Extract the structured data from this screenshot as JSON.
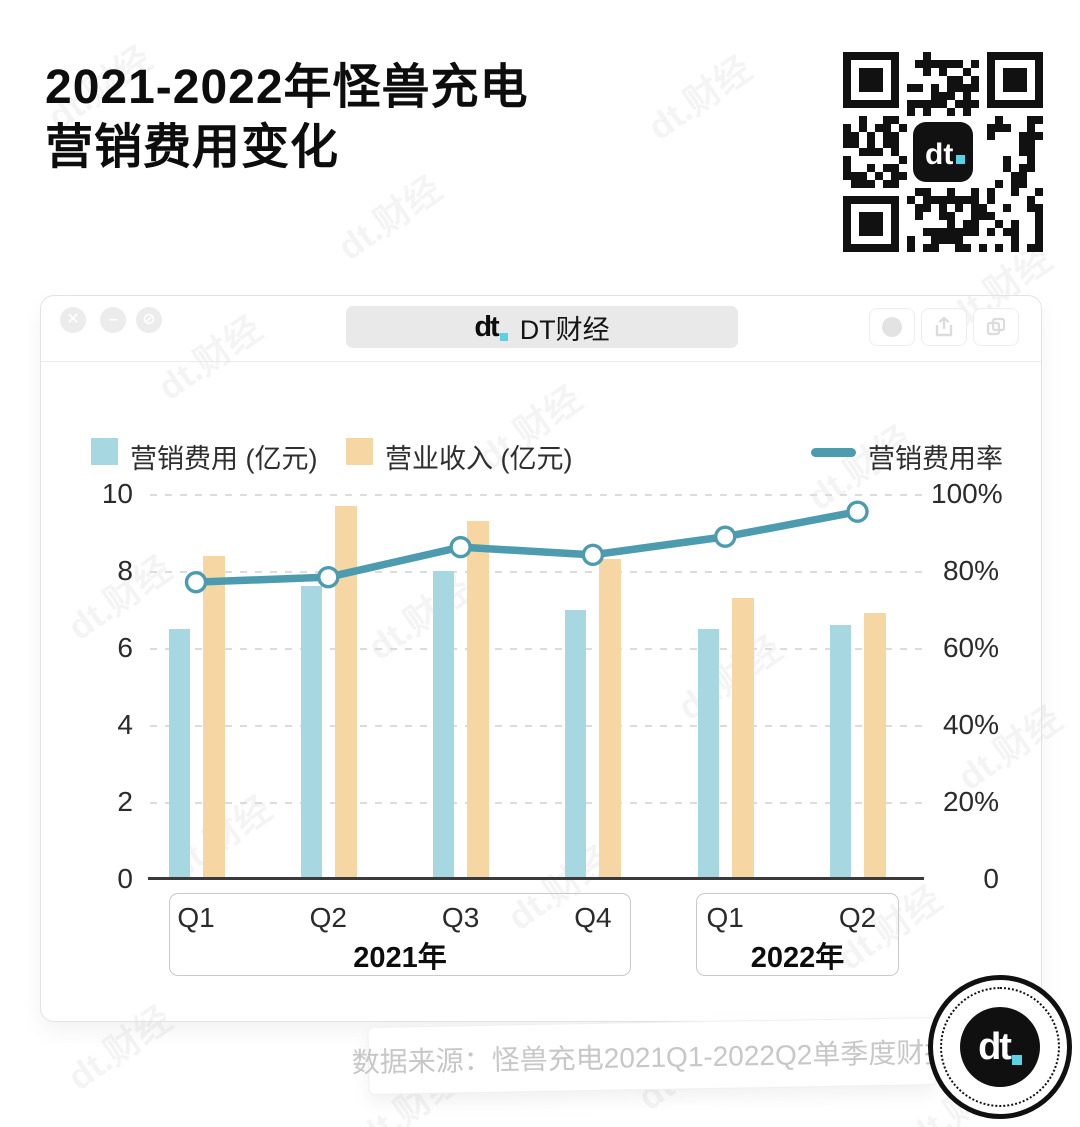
{
  "header": {
    "title_line1": "2021-2022年怪兽充电",
    "title_line2": "营销费用变化"
  },
  "watermark_text": "dt.财经",
  "window": {
    "logo_text": "dt",
    "address_title": "DT财经"
  },
  "chart_data": {
    "type": "bar",
    "subtype": "grouped-bars-with-line",
    "categories": [
      "Q1",
      "Q2",
      "Q3",
      "Q4",
      "Q1",
      "Q2"
    ],
    "groups": [
      {
        "label": "2021年",
        "start": 0,
        "end": 3
      },
      {
        "label": "2022年",
        "start": 4,
        "end": 5
      }
    ],
    "series": [
      {
        "name": "营销费用 (亿元)",
        "type": "bar",
        "axis": "left",
        "color": "#a7d8e2",
        "values": [
          6.5,
          7.6,
          8.0,
          7.0,
          6.5,
          6.6
        ]
      },
      {
        "name": "营业收入 (亿元)",
        "type": "bar",
        "axis": "left",
        "color": "#f6d7a4",
        "values": [
          8.4,
          9.7,
          9.3,
          8.3,
          7.3,
          6.9
        ]
      },
      {
        "name": "营销费用率",
        "type": "line",
        "axis": "right",
        "color": "#4c9baf",
        "values_pct": [
          77.1,
          78.4,
          86.2,
          84.2,
          88.9,
          95.4
        ]
      }
    ],
    "left_axis": {
      "max": 10,
      "min": 0,
      "ticks": [
        "10",
        "8",
        "6",
        "4",
        "2",
        "0"
      ]
    },
    "right_axis": {
      "max": 100,
      "min": 0,
      "ticks": [
        "100%",
        "80%",
        "60%",
        "40%",
        "20%",
        "0"
      ]
    },
    "grid": true,
    "legend_position": "top"
  },
  "footer": {
    "source": "数据来源：怪兽充电2021Q1-2022Q2单季度财报"
  },
  "badge": {
    "logo_text": "dt"
  }
}
